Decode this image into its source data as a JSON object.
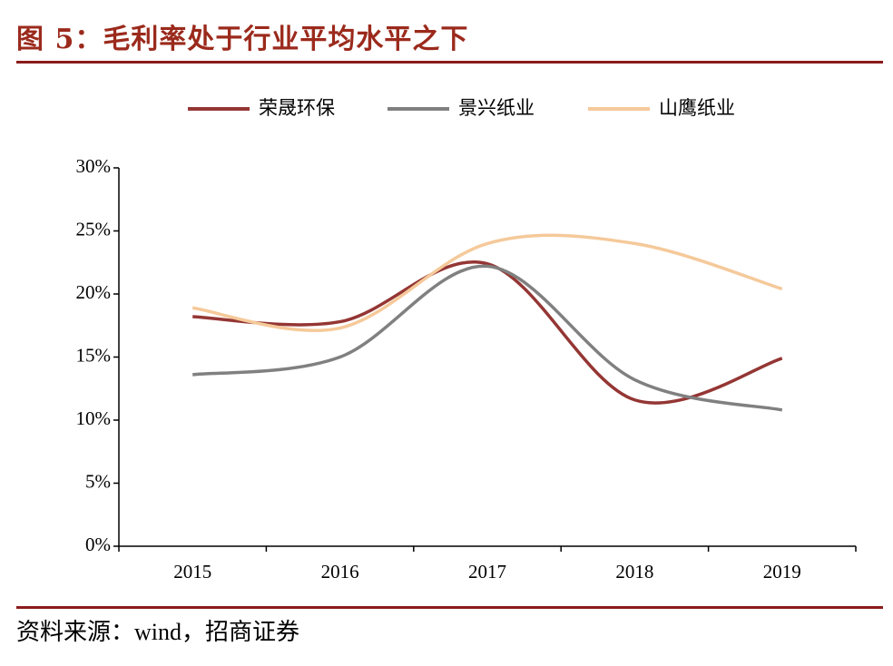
{
  "chart_data": {
    "type": "line",
    "title": "图 5：毛利率处于行业平均水平之下",
    "source": "资料来源：wind，招商证券",
    "categories": [
      "2015",
      "2016",
      "2017",
      "2018",
      "2019"
    ],
    "series": [
      {
        "name": "荣晟环保",
        "color": "#943634",
        "values": [
          18.2,
          17.8,
          22.4,
          11.6,
          14.9
        ]
      },
      {
        "name": "景兴纸业",
        "color": "#808080",
        "values": [
          13.6,
          15.0,
          22.2,
          13.2,
          10.8
        ]
      },
      {
        "name": "山鹰纸业",
        "color": "#f5c99a",
        "values": [
          18.9,
          17.3,
          24.0,
          24.0,
          20.4
        ]
      }
    ],
    "ylim": [
      0,
      30
    ],
    "yticks": [
      {
        "value": 0,
        "label": "0%"
      },
      {
        "value": 5,
        "label": "5%"
      },
      {
        "value": 10,
        "label": "10%"
      },
      {
        "value": 15,
        "label": "15%"
      },
      {
        "value": 20,
        "label": "20%"
      },
      {
        "value": 25,
        "label": "25%"
      },
      {
        "value": 30,
        "label": "30%"
      }
    ],
    "smooth": true,
    "legend": "top"
  }
}
